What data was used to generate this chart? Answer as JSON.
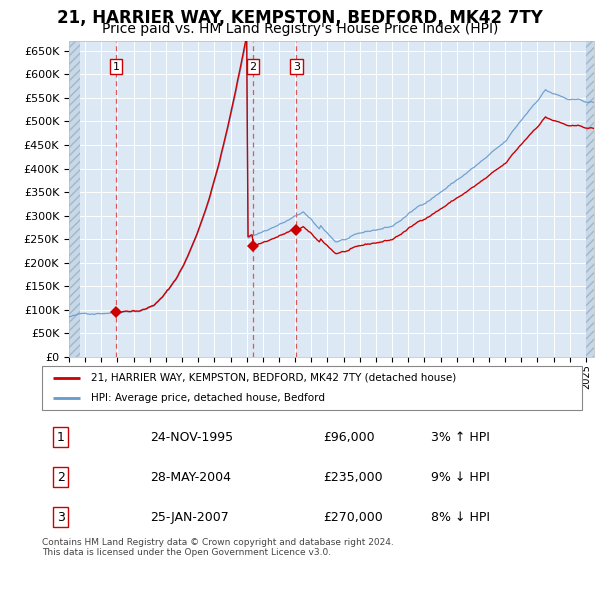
{
  "title": "21, HARRIER WAY, KEMPSTON, BEDFORD, MK42 7TY",
  "subtitle": "Price paid vs. HM Land Registry's House Price Index (HPI)",
  "ylim": [
    0,
    670000
  ],
  "yticks": [
    0,
    50000,
    100000,
    150000,
    200000,
    250000,
    300000,
    350000,
    400000,
    450000,
    500000,
    550000,
    600000,
    650000
  ],
  "background_color": "#ffffff",
  "plot_bg_color": "#dce9f5",
  "grid_color": "#ffffff",
  "legend_label_red": "21, HARRIER WAY, KEMPSTON, BEDFORD, MK42 7TY (detached house)",
  "legend_label_blue": "HPI: Average price, detached house, Bedford",
  "transactions": [
    {
      "num": 1,
      "date": "24-NOV-1995",
      "price": 96000,
      "pct": "3%",
      "dir": "↑",
      "x_year": 1995.9
    },
    {
      "num": 2,
      "date": "28-MAY-2004",
      "price": 235000,
      "pct": "9%",
      "dir": "↓",
      "x_year": 2004.4
    },
    {
      "num": 3,
      "date": "25-JAN-2007",
      "price": 270000,
      "pct": "8%",
      "dir": "↓",
      "x_year": 2007.07
    }
  ],
  "footer": "Contains HM Land Registry data © Crown copyright and database right 2024.\nThis data is licensed under the Open Government Licence v3.0.",
  "red_line_color": "#cc0000",
  "blue_line_color": "#6699cc",
  "marker_color": "#cc0000",
  "dashed_line_color": "#dd3333",
  "box_edge_color": "#cc0000",
  "title_fontsize": 12,
  "subtitle_fontsize": 10,
  "xmin": 1993,
  "xmax": 2025.5,
  "hpi_index_base": 96000,
  "hpi_index_base_year": 1995.9,
  "purchase1_year": 1995.9,
  "purchase1_price": 96000,
  "purchase2_year": 2004.4,
  "purchase2_price": 235000,
  "purchase3_year": 2007.07,
  "purchase3_price": 270000
}
